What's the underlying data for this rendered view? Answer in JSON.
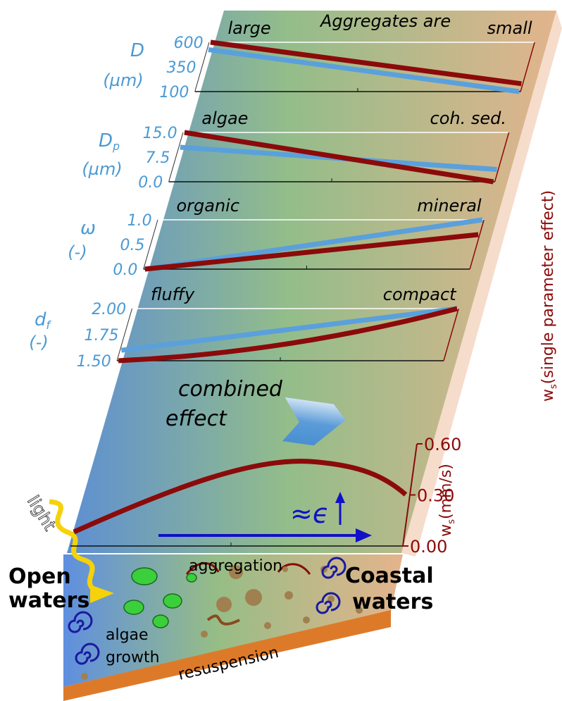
{
  "header": {
    "title": "Aggregates are"
  },
  "panels": [
    {
      "symbol": "D",
      "subscript": "",
      "unit": "(µm)",
      "ticks": [
        "600",
        "350",
        "100"
      ],
      "left": "large",
      "right": "small"
    },
    {
      "symbol": "D",
      "subscript": "p",
      "unit": "(µm)",
      "ticks": [
        "15.0",
        "7.5",
        "0.0"
      ],
      "left": "algae",
      "right": "coh. sed."
    },
    {
      "symbol": "ω",
      "subscript": "",
      "unit": "(-)",
      "ticks": [
        "1.0",
        "0.5",
        "0.0"
      ],
      "left": "organic",
      "right": "mineral"
    },
    {
      "symbol": "d",
      "subscript": "f",
      "unit": "(-)",
      "ticks": [
        "2.00",
        "1.75",
        "1.50"
      ],
      "left": "fluffy",
      "right": "compact"
    }
  ],
  "side_label": {
    "symbol": "w",
    "subscript": "s",
    "text": "(single parameter effect)"
  },
  "combined": {
    "line1": "combined",
    "line2": "effect"
  },
  "bottom_chart": {
    "ticks": [
      "0.60",
      "0.30",
      "0.00"
    ],
    "axis_symbol": "w",
    "axis_subscript": "s",
    "axis_unit": "(mm/s)",
    "annotation": "≈ϵ"
  },
  "scene": {
    "light": "light",
    "open_line1": "Open",
    "open_line2": "waters",
    "coastal_line1": "Coastal",
    "coastal_line2": "waters",
    "aggregation": "aggregation",
    "algae_line1": "algae",
    "algae_line2": "growth",
    "resuspension": "resuspension"
  }
}
